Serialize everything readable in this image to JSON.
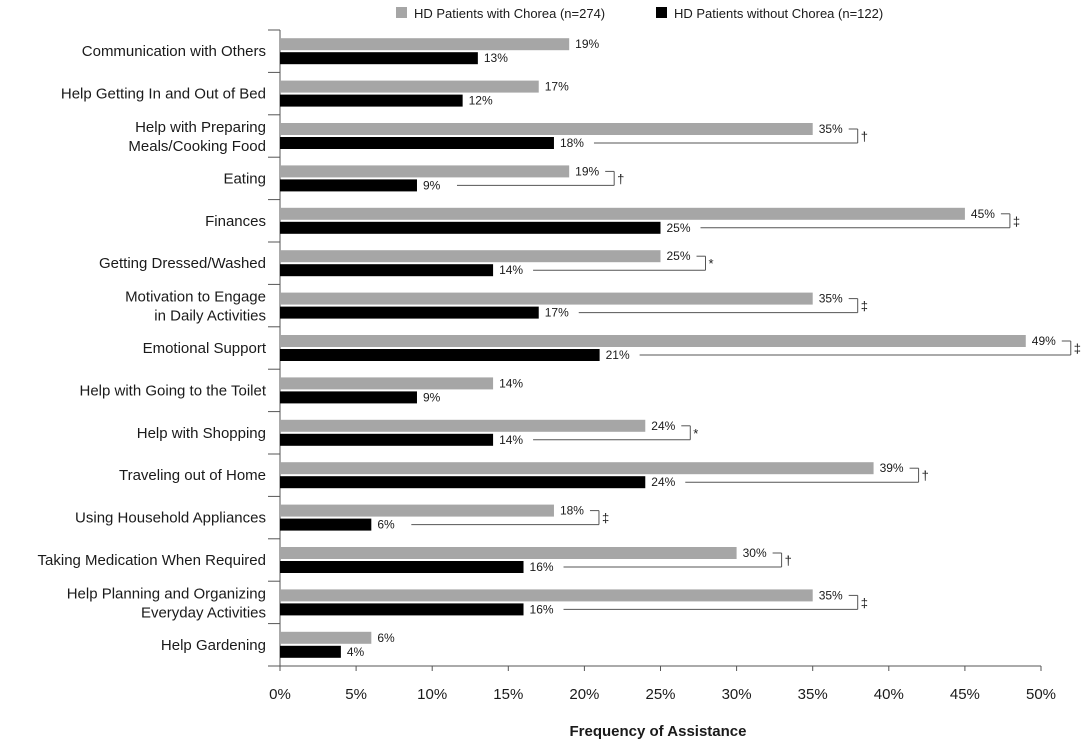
{
  "chart_data": {
    "type": "bar",
    "orientation": "horizontal",
    "title": "",
    "xlabel": "Frequency of Assistance",
    "ylabel": "",
    "xlim": [
      0,
      50
    ],
    "x_ticks": [
      "0%",
      "5%",
      "10%",
      "15%",
      "20%",
      "25%",
      "30%",
      "35%",
      "40%",
      "45%",
      "50%"
    ],
    "grid": false,
    "legend_position": "top",
    "categories": [
      "Communication with Others",
      "Help Getting In and Out of Bed",
      "Help with Preparing\nMeals/Cooking Food",
      "Eating",
      "Finances",
      "Getting Dressed/Washed",
      "Motivation to Engage\nin Daily Activities",
      "Emotional Support",
      "Help with Going to the Toilet",
      "Help with Shopping",
      "Traveling out of Home",
      "Using Household Appliances",
      "Taking Medication When Required",
      "Help Planning and Organizing\nEveryday Activities",
      "Help Gardening"
    ],
    "series": [
      {
        "name": "HD Patients with Chorea (n=274)",
        "color": "#a6a6a6",
        "values": [
          19,
          17,
          35,
          19,
          45,
          25,
          35,
          49,
          14,
          24,
          39,
          18,
          30,
          35,
          6
        ]
      },
      {
        "name": "HD Patients without Chorea (n=122)",
        "color": "#000000",
        "values": [
          13,
          12,
          18,
          9,
          25,
          14,
          17,
          21,
          9,
          14,
          24,
          6,
          16,
          16,
          4
        ]
      }
    ],
    "significance": [
      "",
      "",
      "†",
      "†",
      "‡",
      "*",
      "‡",
      "‡",
      "",
      "*",
      "†",
      "‡",
      "†",
      "‡",
      ""
    ]
  }
}
